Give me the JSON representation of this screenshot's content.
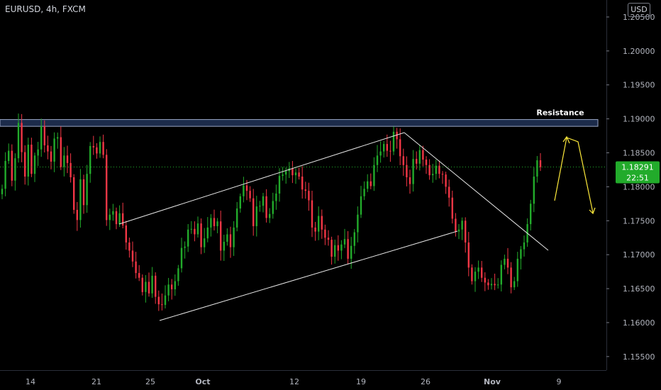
{
  "header": {
    "symbol": "EURUSD, 4h, FXCM"
  },
  "currency_button": "USD",
  "current_price": {
    "value": "1.18291",
    "countdown": "22:51",
    "color": "#22ab2b"
  },
  "colors": {
    "up": "#22ab2b",
    "down": "#f23645",
    "zone_fill": "#1c2b4a",
    "zone_border": "#9aa6c4",
    "trendline": "#e6e6e6",
    "arrow": "#ffeb3b",
    "axis_line": "#2a2e39"
  },
  "chart_data": {
    "type": "candlestick",
    "title": "EURUSD, 4h, FXCM",
    "ylim": [
      1.153,
      1.2075
    ],
    "y_ticks": [
      "1.15500",
      "1.16000",
      "1.16500",
      "1.17000",
      "1.17500",
      "1.18000",
      "1.18500",
      "1.19000",
      "1.19500",
      "1.20000",
      "1.20500"
    ],
    "x_ticks": [
      "14",
      "21",
      "25",
      "Oct",
      "12",
      "19",
      "26",
      "Nov",
      "9"
    ],
    "series": [
      {
        "values": [
          1.1797,
          1.1838,
          1.1853,
          1.1809,
          1.1842,
          1.1894,
          1.1851,
          1.1815,
          1.1862,
          1.1819,
          1.1846,
          1.1855,
          1.1889,
          1.1861,
          1.1852,
          1.1837,
          1.1871,
          1.1873,
          1.1829,
          1.1846,
          1.1835,
          1.1814,
          1.1766,
          1.1751,
          1.1811,
          1.1773,
          1.1819,
          1.186,
          1.1858,
          1.1849,
          1.1866,
          1.1847,
          1.1751,
          1.1759,
          1.1764,
          1.1745,
          1.1761,
          1.1743,
          1.1718,
          1.1706,
          1.169,
          1.1673,
          1.1666,
          1.1645,
          1.166,
          1.1643,
          1.1669,
          1.1638,
          1.1627,
          1.1626,
          1.164,
          1.1656,
          1.1649,
          1.1661,
          1.168,
          1.171,
          1.1712,
          1.1737,
          1.1738,
          1.173,
          1.1746,
          1.1711,
          1.1724,
          1.174,
          1.1754,
          1.1742,
          1.1749,
          1.1706,
          1.1719,
          1.173,
          1.1711,
          1.174,
          1.1768,
          1.1786,
          1.1802,
          1.1794,
          1.1783,
          1.1742,
          1.1771,
          1.1772,
          1.1786,
          1.1754,
          1.176,
          1.1779,
          1.179,
          1.1816,
          1.1818,
          1.1823,
          1.1827,
          1.1817,
          1.1821,
          1.1815,
          1.1796,
          1.1794,
          1.178,
          1.174,
          1.1734,
          1.1757,
          1.1737,
          1.1725,
          1.1722,
          1.1697,
          1.1714,
          1.1706,
          1.1715,
          1.1723,
          1.1694,
          1.1713,
          1.1733,
          1.1759,
          1.1786,
          1.1797,
          1.1808,
          1.1801,
          1.1832,
          1.1846,
          1.1852,
          1.1863,
          1.1853,
          1.1852,
          1.1881,
          1.187,
          1.1845,
          1.1832,
          1.1814,
          1.1804,
          1.1841,
          1.1834,
          1.1854,
          1.184,
          1.1832,
          1.1817,
          1.1819,
          1.1831,
          1.1819,
          1.1818,
          1.18,
          1.1784,
          1.1753,
          1.1734,
          1.1737,
          1.175,
          1.1718,
          1.1681,
          1.1661,
          1.1675,
          1.1681,
          1.1666,
          1.1659,
          1.1655,
          1.1657,
          1.1655,
          1.1656,
          1.1685,
          1.1694,
          1.1681,
          1.1652,
          1.1661,
          1.1694,
          1.1708,
          1.1718,
          1.1745,
          1.1775,
          1.1815,
          1.1839,
          1.1829
        ]
      }
    ],
    "annotations": {
      "label": "Resistance"
    }
  }
}
